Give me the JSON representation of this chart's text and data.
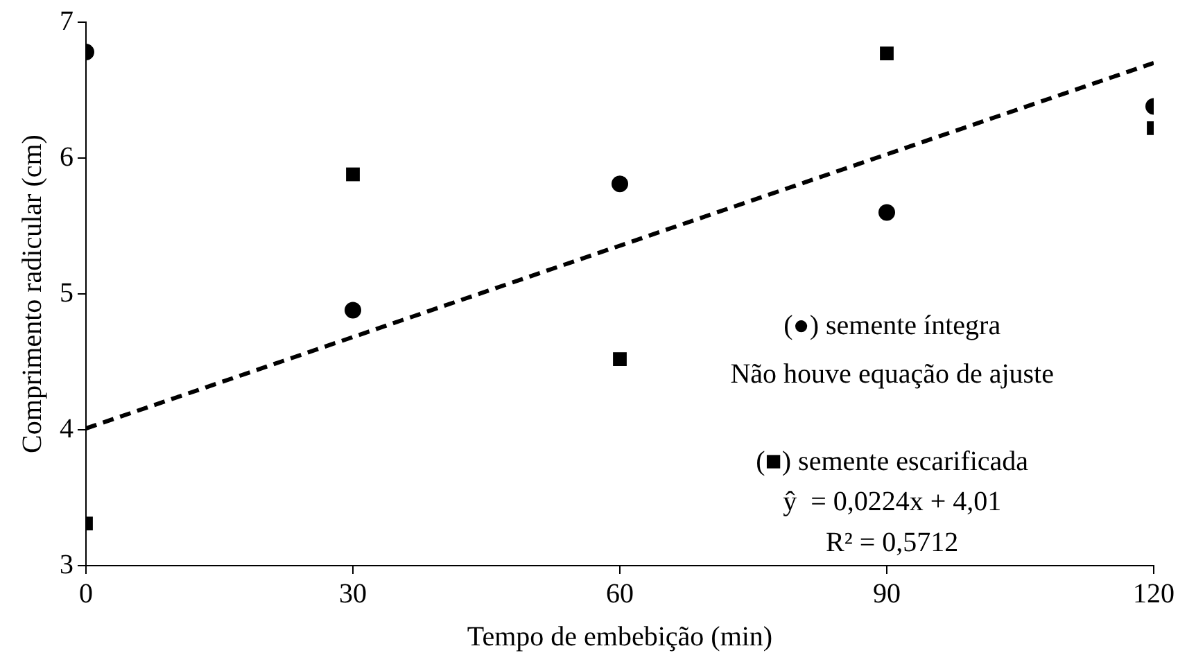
{
  "chart_data": {
    "type": "scatter",
    "xlabel": "Tempo de embebição (min)",
    "ylabel": "Comprimento radicular (cm)",
    "x": [
      0,
      30,
      60,
      90,
      120
    ],
    "series": [
      {
        "type": "scatter",
        "marker": "circle",
        "color": "#000000",
        "values": [
          6.78,
          4.88,
          5.81,
          5.6,
          6.38
        ]
      },
      {
        "type": "scatter",
        "marker": "square",
        "color": "#000000",
        "values": [
          3.31,
          5.88,
          4.52,
          6.77,
          6.22
        ]
      },
      {
        "type": "line",
        "marker": "none",
        "line_style": "dashed",
        "color": "#000000",
        "x": [
          0,
          120
        ],
        "values": [
          4.01,
          6.7
        ]
      }
    ],
    "xlim": [
      0,
      120
    ],
    "xticks": [
      0,
      30,
      60,
      90,
      120
    ],
    "ylim": [
      3,
      7
    ],
    "yticks": [
      3,
      4,
      5,
      6,
      7
    ],
    "grid": false,
    "legend": false,
    "annotations": [
      "(●) semente íntegra",
      "Não houve equação de ajuste",
      "(■) semente escarificada",
      "ŷ  = 0,0224x + 4,01",
      "R² = 0,5712"
    ]
  }
}
